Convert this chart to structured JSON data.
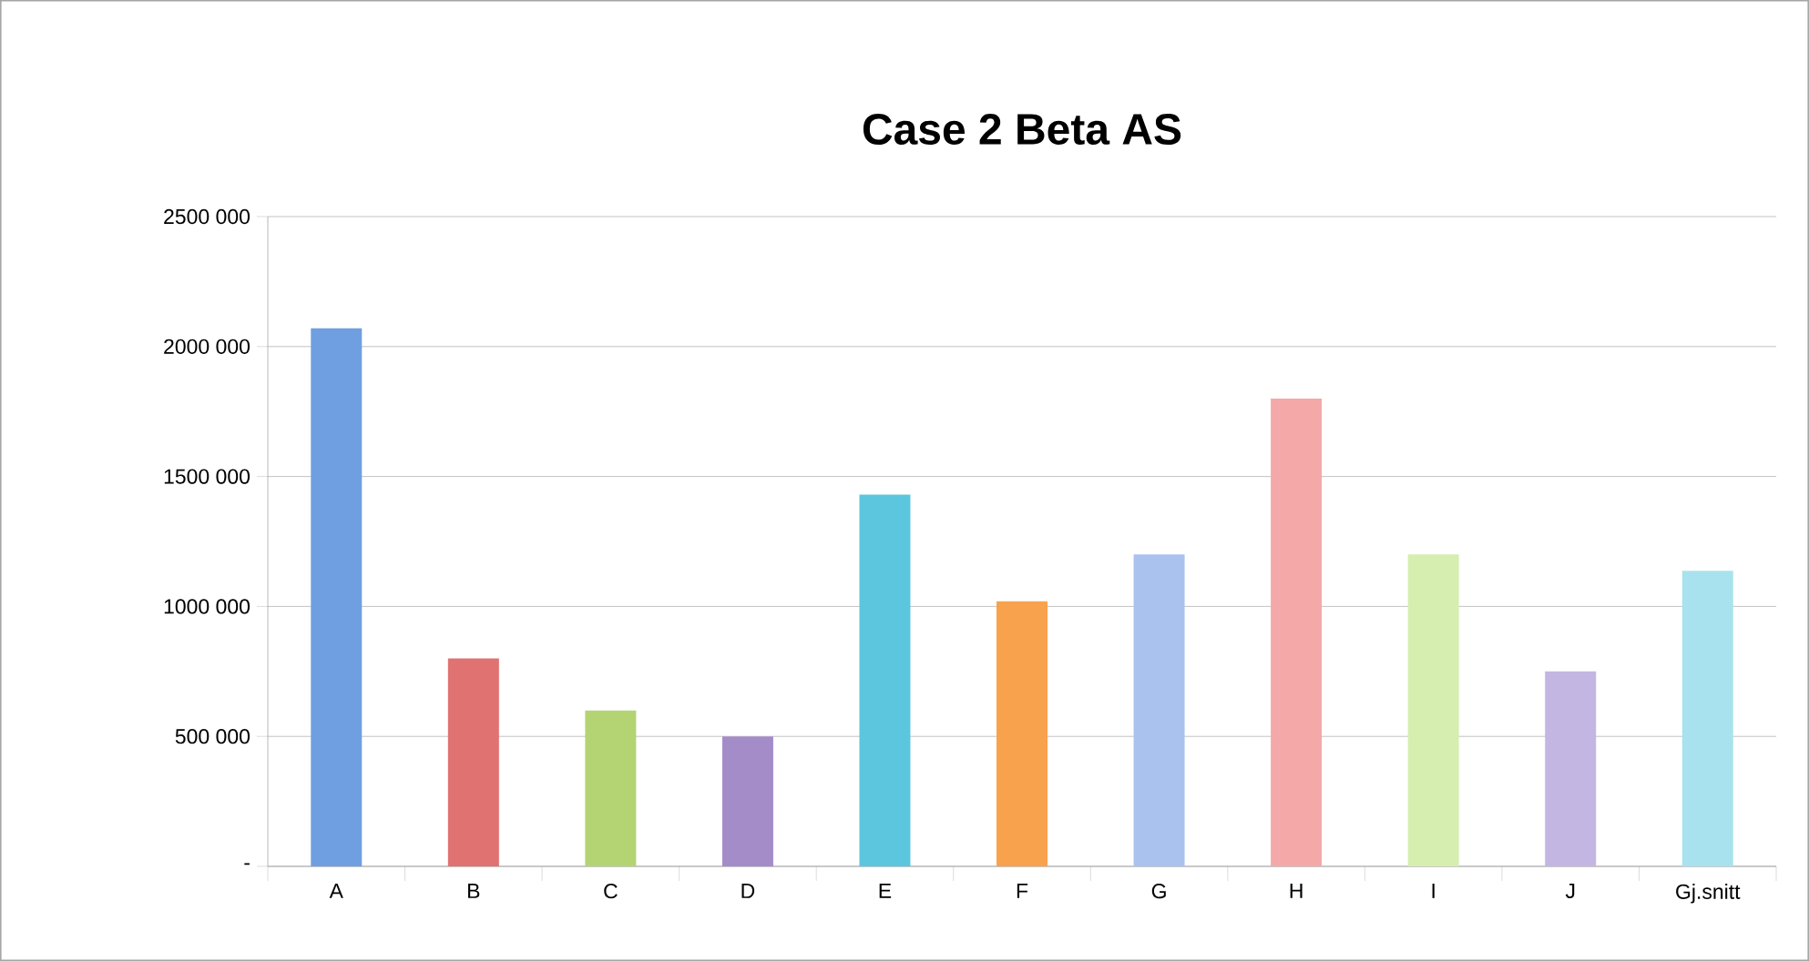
{
  "chart_data": {
    "type": "bar",
    "title": "Case 2 Beta AS",
    "categories": [
      "A",
      "B",
      "C",
      "D",
      "E",
      "F",
      "G",
      "H",
      "I",
      "J",
      "Gj.snitt"
    ],
    "values": [
      2070000,
      800000,
      600000,
      500000,
      1430000,
      1020000,
      1200000,
      1800000,
      1200000,
      750000,
      1137000
    ],
    "colors": [
      "#6f9fe0",
      "#e07272",
      "#b4d474",
      "#a48cc8",
      "#5cc6de",
      "#f8a24e",
      "#a9c2ee",
      "#f4a8a8",
      "#d6eeb0",
      "#c4b6e2",
      "#a8e2ee"
    ],
    "ylim": [
      0,
      2500000
    ],
    "yticks": [
      {
        "value": 0,
        "label": "-"
      },
      {
        "value": 500000,
        "label": "500 000"
      },
      {
        "value": 1000000,
        "label": "1000 000"
      },
      {
        "value": 1500000,
        "label": "1500 000"
      },
      {
        "value": 2000000,
        "label": "2000 000"
      },
      {
        "value": 2500000,
        "label": "2500 000"
      }
    ],
    "grid": "y"
  }
}
